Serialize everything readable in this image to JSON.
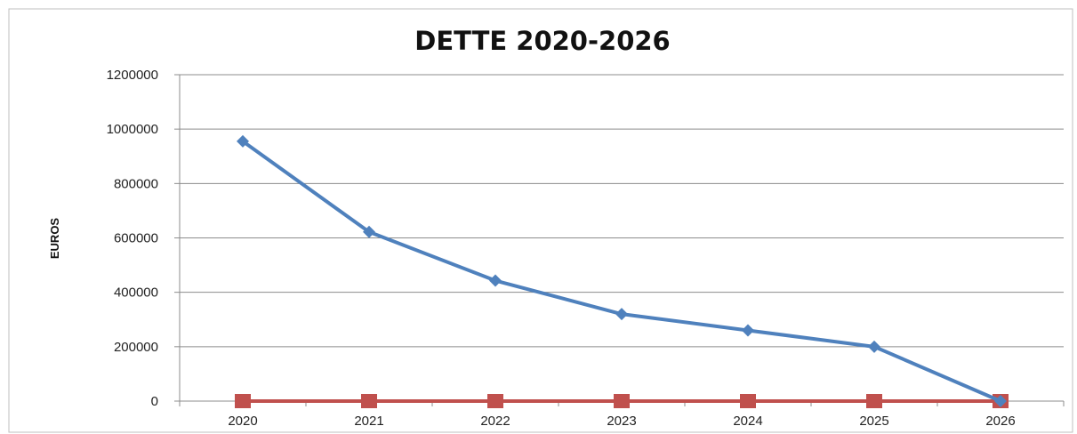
{
  "chart_data": {
    "type": "line",
    "title": "DETTE 2020-2026",
    "xlabel": "",
    "ylabel": "EUROS",
    "categories": [
      "2020",
      "2021",
      "2022",
      "2023",
      "2024",
      "2025",
      "2026"
    ],
    "ylim": [
      0,
      1200000
    ],
    "yticks": [
      0,
      200000,
      400000,
      600000,
      800000,
      1000000,
      1200000
    ],
    "grid": true,
    "legend": "none",
    "series": [
      {
        "values": [
          955000,
          622000,
          443000,
          320000,
          260000,
          200000,
          0
        ],
        "color": "#4f81bd",
        "marker": "diamond"
      },
      {
        "values": [
          0,
          0,
          0,
          0,
          0,
          0,
          0
        ],
        "color": "#c0504d",
        "marker": "square"
      }
    ]
  }
}
